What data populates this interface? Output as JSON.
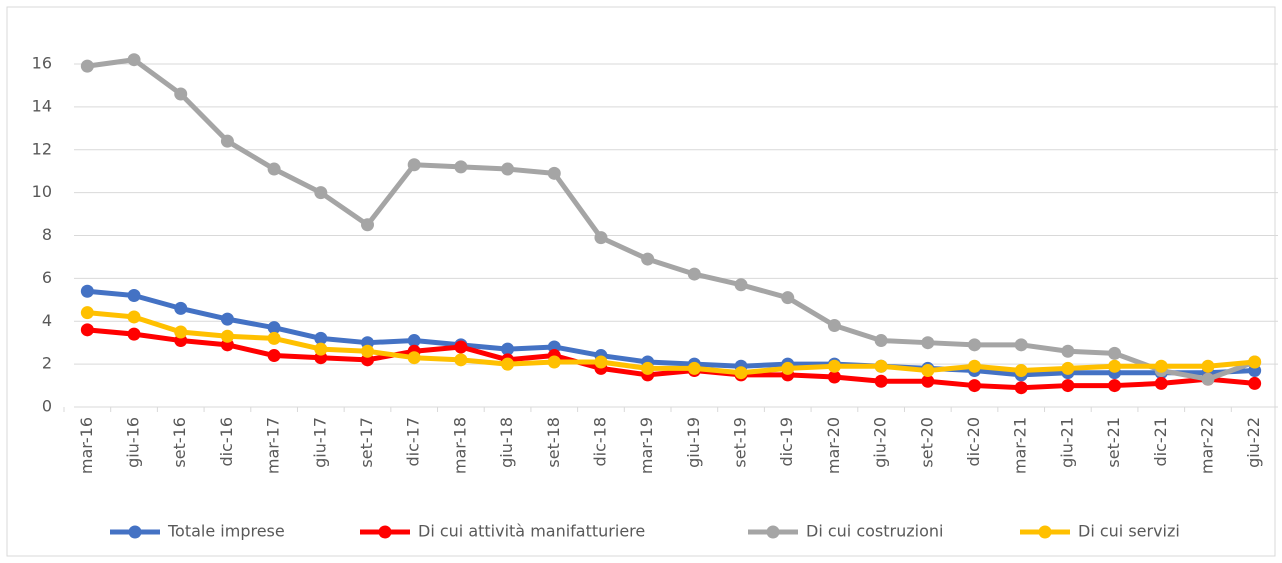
{
  "chart_data": {
    "type": "line",
    "categories": [
      "mar-16",
      "giu-16",
      "set-16",
      "dic-16",
      "mar-17",
      "giu-17",
      "set-17",
      "dic-17",
      "mar-18",
      "giu-18",
      "set-18",
      "dic-18",
      "mar-19",
      "giu-19",
      "set-19",
      "dic-19",
      "mar-20",
      "giu-20",
      "set-20",
      "dic-20",
      "mar-21",
      "giu-21",
      "set-21",
      "dic-21",
      "mar-22",
      "giu-22"
    ],
    "series": [
      {
        "name": "Totale imprese",
        "color": "#4472c4",
        "values": [
          5.4,
          5.2,
          4.6,
          4.1,
          3.7,
          3.2,
          3.0,
          3.1,
          2.9,
          2.7,
          2.8,
          2.4,
          2.1,
          2.0,
          1.9,
          2.0,
          2.0,
          1.9,
          1.8,
          1.7,
          1.5,
          1.6,
          1.6,
          1.6,
          1.6,
          1.7
        ]
      },
      {
        "name": "Di cui attività manifatturiere",
        "color": "#ff0000",
        "values": [
          3.6,
          3.4,
          3.1,
          2.9,
          2.4,
          2.3,
          2.2,
          2.6,
          2.8,
          2.2,
          2.4,
          1.8,
          1.5,
          1.7,
          1.5,
          1.5,
          1.4,
          1.2,
          1.2,
          1.0,
          0.9,
          1.0,
          1.0,
          1.1,
          1.3,
          1.1
        ]
      },
      {
        "name": "Di cui costruzioni",
        "color": "#a5a5a5",
        "values": [
          15.9,
          16.2,
          14.6,
          12.4,
          11.1,
          10.0,
          8.5,
          11.3,
          11.2,
          11.1,
          10.9,
          7.9,
          6.9,
          6.2,
          5.7,
          5.1,
          3.8,
          3.1,
          3.0,
          2.9,
          2.9,
          2.6,
          2.5,
          1.7,
          1.3,
          2.1
        ]
      },
      {
        "name": "Di cui servizi",
        "color": "#ffc000",
        "values": [
          4.4,
          4.2,
          3.5,
          3.3,
          3.2,
          2.7,
          2.6,
          2.3,
          2.2,
          2.0,
          2.1,
          2.1,
          1.8,
          1.8,
          1.6,
          1.8,
          1.9,
          1.9,
          1.7,
          1.9,
          1.7,
          1.8,
          1.9,
          1.9,
          1.9,
          2.1
        ]
      }
    ],
    "ylim": [
      0,
      16
    ],
    "yticks": [
      0,
      2,
      4,
      6,
      8,
      10,
      12,
      14,
      16
    ],
    "grid": true,
    "legend": "bottom"
  }
}
